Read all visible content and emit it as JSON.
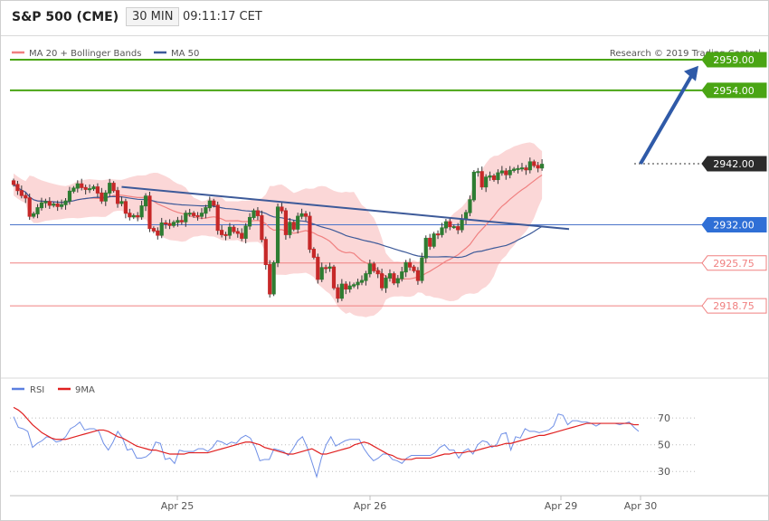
{
  "header": {
    "title": "S&P 500 (CME)",
    "timeframe": "30 MIN",
    "time": "09:11:17 CET"
  },
  "legend": {
    "items": [
      {
        "label": "MA 20 + Bollinger Bands",
        "color": "#f08080"
      },
      {
        "label": "MA 50",
        "color": "#3d5a99"
      }
    ],
    "credit": "Research © 2019 Trading Central"
  },
  "colors": {
    "up": "#2e7d32",
    "down": "#c62828",
    "target": "#4aa514",
    "pivot": "#333333",
    "support": "#f08080",
    "resistance_blue": "#4a74c9",
    "arrow": "#2f5aa8",
    "band": "#f9c9c9"
  },
  "chart_data": [
    {
      "type": "candlestick",
      "title": "S&P 500 (CME)",
      "interval": "30 MIN",
      "ylim": [
        2913,
        2963
      ],
      "x_ticks": [
        "Apr 25",
        "Apr 26",
        "Apr 29",
        "Apr 30"
      ],
      "levels": [
        {
          "value": 2959.0,
          "label": "2959.00",
          "style": "target"
        },
        {
          "value": 2954.0,
          "label": "2954.00",
          "style": "target"
        },
        {
          "value": 2942.0,
          "label": "2942.00",
          "style": "pivot"
        },
        {
          "value": 2932.0,
          "label": "2932.00",
          "style": "blue"
        },
        {
          "value": 2925.75,
          "label": "2925.75",
          "style": "support"
        },
        {
          "value": 2918.75,
          "label": "2918.75",
          "style": "support"
        }
      ],
      "trendline": {
        "from": 2938.2,
        "to": 2931.3
      },
      "forecast_arrow": {
        "from": 2942.0,
        "to": 2958.0
      },
      "closes": [
        2938.6,
        2937.6,
        2936.8,
        2936.4,
        2933.4,
        2933.8,
        2934.8,
        2935.6,
        2935.8,
        2935.2,
        2935.4,
        2935.0,
        2935.3,
        2935.9,
        2937.5,
        2938.0,
        2938.7,
        2938.1,
        2937.8,
        2937.9,
        2938.2,
        2937.2,
        2935.9,
        2937.2,
        2938.8,
        2937.6,
        2935.5,
        2935.8,
        2933.9,
        2933.3,
        2933.5,
        2933.3,
        2935.1,
        2936.7,
        2931.4,
        2931.0,
        2930.3,
        2932.3,
        2932.2,
        2931.9,
        2932.4,
        2932.7,
        2932.5,
        2933.9,
        2933.9,
        2933.5,
        2933.4,
        2933.9,
        2934.8,
        2935.9,
        2935.2,
        2931.1,
        2930.4,
        2930.3,
        2931.6,
        2930.9,
        2930.6,
        2929.8,
        2931.8,
        2933.2,
        2934.3,
        2933.5,
        2929.6,
        2925.5,
        2920.7,
        2925.8,
        2934.9,
        2934.3,
        2930.4,
        2932.4,
        2931.3,
        2933.4,
        2933.8,
        2933.4,
        2928.0,
        2926.7,
        2923.1,
        2925.0,
        2924.9,
        2925.1,
        2921.7,
        2920.0,
        2922.3,
        2921.5,
        2922.0,
        2922.2,
        2922.6,
        2922.9,
        2924.0,
        2925.6,
        2924.5,
        2924.0,
        2921.7,
        2923.3,
        2924.0,
        2922.5,
        2923.2,
        2924.3,
        2925.8,
        2925.1,
        2924.5,
        2922.9,
        2926.6,
        2929.8,
        2928.5,
        2930.5,
        2930.4,
        2931.5,
        2932.5,
        2931.7,
        2931.7,
        2931.2,
        2932.9,
        2934.0,
        2936.1,
        2940.6,
        2940.7,
        2938.2,
        2939.8,
        2940.0,
        2939.4,
        2940.5,
        2940.8,
        2940.2,
        2940.9,
        2941.1,
        2941.2,
        2941.3,
        2941.0,
        2942.3,
        2941.7,
        2941.3,
        2941.9
      ]
    },
    {
      "type": "line",
      "title": "",
      "ylim": [
        20,
        85
      ],
      "y_ticks": [
        30,
        50,
        70
      ],
      "x_ticks": [
        "Apr 25",
        "Apr 26",
        "Apr 29",
        "Apr 30"
      ],
      "series": [
        {
          "name": "RSI",
          "values": [
            71,
            63,
            62,
            60,
            48,
            51,
            53,
            56,
            55,
            52,
            53,
            56,
            62,
            64,
            67,
            61,
            62,
            62,
            60,
            51,
            46,
            52,
            60,
            55,
            46,
            47,
            40,
            40,
            41,
            44,
            52,
            51,
            39,
            40,
            36,
            46,
            45,
            45,
            45,
            47,
            47,
            45,
            48,
            53,
            52,
            50,
            52,
            51,
            55,
            57,
            55,
            48,
            38,
            39,
            39,
            47,
            46,
            45,
            42,
            47,
            53,
            56,
            48,
            37,
            26,
            40,
            50,
            56,
            49,
            51,
            53,
            54,
            54,
            54,
            47,
            42,
            38,
            40,
            43,
            43,
            39,
            38,
            36,
            40,
            42,
            42,
            42,
            42,
            42,
            44,
            48,
            50,
            46,
            46,
            40,
            45,
            47,
            43,
            50,
            53,
            52,
            48,
            50,
            58,
            59,
            46,
            56,
            55,
            62,
            60,
            60,
            59,
            60,
            61,
            64,
            73,
            72,
            65,
            68,
            68,
            67,
            67,
            66,
            64,
            66,
            66,
            66,
            66,
            65,
            66,
            67,
            63,
            60
          ]
        },
        {
          "name": "9MA",
          "values": [
            78,
            76,
            73,
            69,
            65,
            62,
            59,
            57,
            55,
            54,
            54,
            54,
            55,
            56,
            57,
            58,
            59,
            60,
            61,
            61,
            60,
            58,
            56,
            55,
            53,
            51,
            49,
            48,
            47,
            46,
            46,
            45,
            44,
            43,
            43,
            43,
            43,
            44,
            44,
            44,
            44,
            44,
            45,
            46,
            47,
            48,
            49,
            50,
            51,
            52,
            52,
            51,
            50,
            48,
            47,
            46,
            45,
            44,
            43,
            43,
            44,
            45,
            46,
            47,
            45,
            43,
            43,
            44,
            45,
            46,
            47,
            48,
            50,
            51,
            52,
            51,
            49,
            47,
            45,
            43,
            42,
            40,
            39,
            39,
            39,
            40,
            40,
            40,
            40,
            41,
            42,
            43,
            43,
            44,
            44,
            44,
            45,
            45,
            46,
            47,
            48,
            49,
            49,
            50,
            51,
            51,
            52,
            53,
            54,
            55,
            56,
            57,
            57,
            58,
            59,
            60,
            61,
            62,
            63,
            64,
            65,
            66,
            66,
            66,
            66,
            66,
            66,
            66,
            66,
            66,
            66,
            65,
            65
          ]
        }
      ]
    }
  ]
}
